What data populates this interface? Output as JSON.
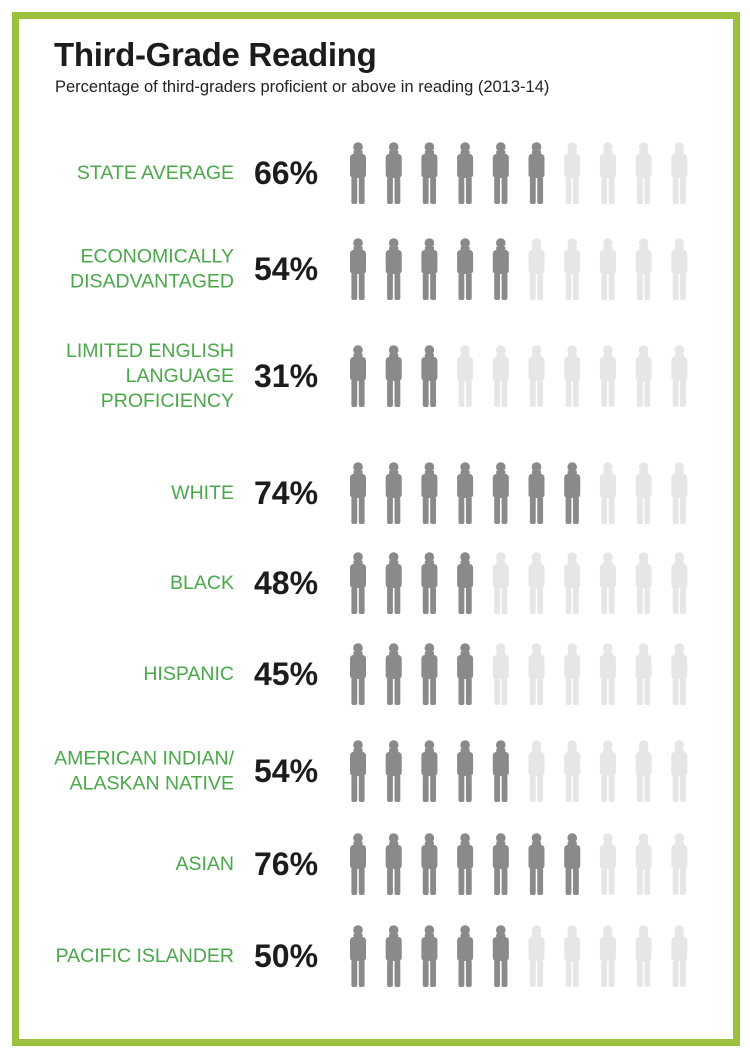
{
  "colors": {
    "frame": "#9cc13c",
    "label": "#4aa84a",
    "value": "#1c1c1c",
    "icon_filled": "#8a8a8b",
    "icon_empty": "#e6e6e7"
  },
  "chart_data": {
    "type": "pictograph",
    "title": "Third-Grade Reading",
    "subtitle": "Percentage of third-graders proficient or above in reading (2013-14)",
    "icons_per_row": 10,
    "icon_name": "child-figure-icon",
    "unit": "%",
    "rows": [
      {
        "label": "STATE AVERAGE",
        "lines": [
          "STATE AVERAGE"
        ],
        "value": 66,
        "value_label": "66%"
      },
      {
        "label": "ECONOMICALLY DISADVANTAGED",
        "lines": [
          "ECONOMICALLY",
          "DISADVANTAGED"
        ],
        "value": 54,
        "value_label": "54%"
      },
      {
        "label": "LIMITED ENGLISH LANGUAGE PROFICIENCY",
        "lines": [
          "LIMITED ENGLISH",
          "LANGUAGE",
          "PROFICIENCY"
        ],
        "value": 31,
        "value_label": "31%"
      },
      {
        "label": "WHITE",
        "lines": [
          "WHITE"
        ],
        "value": 74,
        "value_label": "74%"
      },
      {
        "label": "BLACK",
        "lines": [
          "BLACK"
        ],
        "value": 48,
        "value_label": "48%"
      },
      {
        "label": "HISPANIC",
        "lines": [
          "HISPANIC"
        ],
        "value": 45,
        "value_label": "45%"
      },
      {
        "label": "AMERICAN INDIAN/ ALASKAN NATIVE",
        "lines": [
          "AMERICAN INDIAN/",
          "ALASKAN NATIVE"
        ],
        "value": 54,
        "value_label": "54%"
      },
      {
        "label": "ASIAN",
        "lines": [
          "ASIAN"
        ],
        "value": 76,
        "value_label": "76%"
      },
      {
        "label": "PACIFIC ISLANDER",
        "lines": [
          "PACIFIC ISLANDER"
        ],
        "value": 50,
        "value_label": "50%"
      }
    ]
  }
}
